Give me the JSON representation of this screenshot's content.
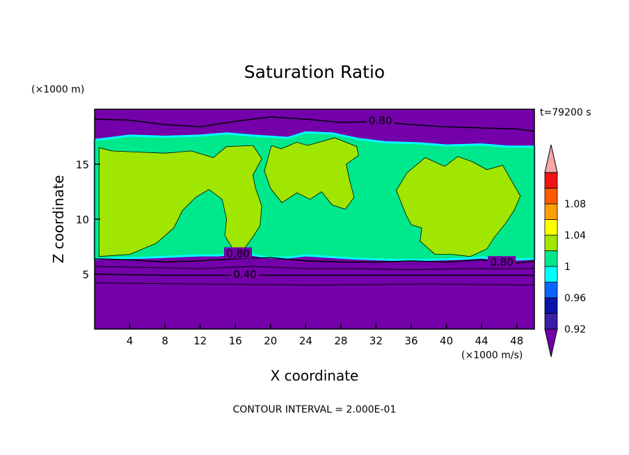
{
  "chart_data": {
    "type": "contour",
    "title": "Saturation Ratio",
    "xlabel": "X coordinate",
    "ylabel": "Z coordinate",
    "x_unit": "(×1000 m/s)",
    "y_unit": "(×1000 m)",
    "time_label": "t=79200 s",
    "footer": "CONTOUR INTERVAL = 2.000E-01",
    "xlim": [
      0,
      50
    ],
    "ylim": [
      0,
      20
    ],
    "x_ticks": [
      4,
      8,
      12,
      16,
      20,
      24,
      28,
      32,
      36,
      40,
      44,
      48
    ],
    "y_ticks": [
      5,
      10,
      15
    ],
    "contour_labels": [
      {
        "text": "0.80",
        "x": 32.5,
        "y": 18.9
      },
      {
        "text": "0.80",
        "x": 16.3,
        "y": 6.8
      },
      {
        "text": "0.80",
        "x": 46.3,
        "y": 6.0
      },
      {
        "text": "0.40",
        "x": 17.1,
        "y": 4.9
      }
    ],
    "colorbar": {
      "levels": [
        0.92,
        0.94,
        0.96,
        0.98,
        1.0,
        1.02,
        1.04,
        1.06,
        1.08,
        1.1
      ],
      "tick_labels": [
        "0.92",
        "0.96",
        "1",
        "1.04",
        "1.08"
      ],
      "tick_values": [
        0.92,
        0.96,
        1.0,
        1.04,
        1.08
      ],
      "colors": [
        "#7300a8",
        "#3a1ea8",
        "#0a14a8",
        "#0a64ff",
        "#00ffff",
        "#00e88c",
        "#a0e600",
        "#ffff00",
        "#ffa000",
        "#ff5a00",
        "#f01414",
        "#f4a8a8"
      ]
    },
    "regions": {
      "low_color": "#7300a8",
      "mid_color": "#00e88c",
      "high_color": "#a0e600",
      "boundary_color": "#00ffff",
      "dry_color": "#3a1ea8"
    }
  }
}
